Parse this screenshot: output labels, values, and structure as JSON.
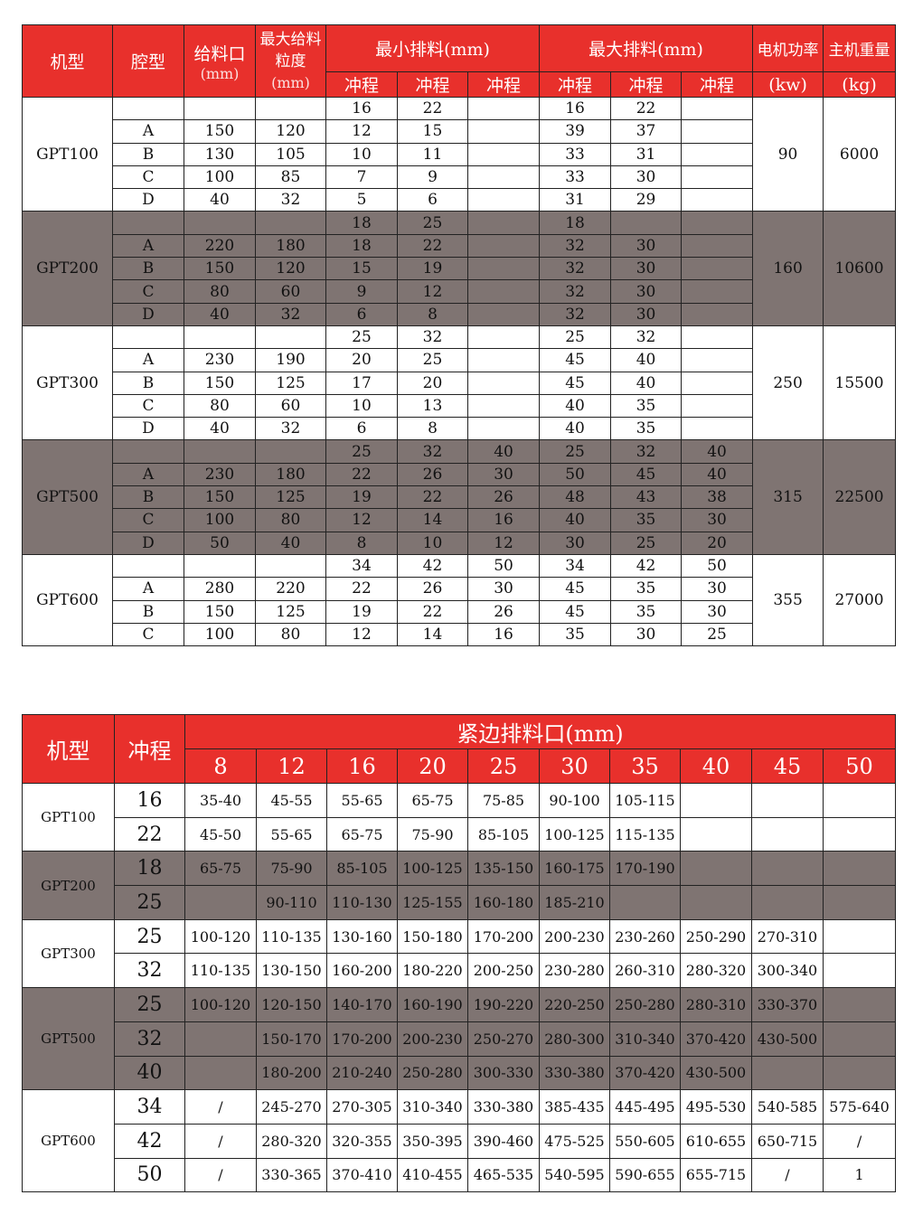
{
  "colors": {
    "header_red": "#e8302c",
    "gray_band": "#7f7472"
  },
  "table1": {
    "headers": {
      "model": "机型",
      "cavity": "腔型",
      "feed_opening": "给料口",
      "feed_opening_unit": "(mm)",
      "max_feed": "最大给料粒度",
      "max_feed_unit": "(mm)",
      "min_discharge": "最小排料(mm)",
      "max_discharge": "最大排料(mm)",
      "stroke": "冲程",
      "power": "电机功率",
      "power_unit": "(kw)",
      "weight": "主机重量",
      "weight_unit": "(kg)"
    },
    "groups": [
      {
        "model": "GPT100",
        "power": "90",
        "weight": "6000",
        "gray": false,
        "rows": [
          [
            "",
            "",
            "",
            "16",
            "22",
            "",
            "16",
            "22",
            ""
          ],
          [
            "A",
            "150",
            "120",
            "12",
            "15",
            "",
            "39",
            "37",
            ""
          ],
          [
            "B",
            "130",
            "105",
            "10",
            "11",
            "",
            "33",
            "31",
            ""
          ],
          [
            "C",
            "100",
            "85",
            "7",
            "9",
            "",
            "33",
            "30",
            ""
          ],
          [
            "D",
            "40",
            "32",
            "5",
            "6",
            "",
            "31",
            "29",
            ""
          ]
        ]
      },
      {
        "model": "GPT200",
        "power": "160",
        "weight": "10600",
        "gray": true,
        "rows": [
          [
            "",
            "",
            "",
            "18",
            "25",
            "",
            "18",
            "",
            ""
          ],
          [
            "A",
            "220",
            "180",
            "18",
            "22",
            "",
            "32",
            "30",
            ""
          ],
          [
            "B",
            "150",
            "120",
            "15",
            "19",
            "",
            "32",
            "30",
            ""
          ],
          [
            "C",
            "80",
            "60",
            "9",
            "12",
            "",
            "32",
            "30",
            ""
          ],
          [
            "D",
            "40",
            "32",
            "6",
            "8",
            "",
            "32",
            "30",
            ""
          ]
        ]
      },
      {
        "model": "GPT300",
        "power": "250",
        "weight": "15500",
        "gray": false,
        "rows": [
          [
            "",
            "",
            "",
            "25",
            "32",
            "",
            "25",
            "32",
            ""
          ],
          [
            "A",
            "230",
            "190",
            "20",
            "25",
            "",
            "45",
            "40",
            ""
          ],
          [
            "B",
            "150",
            "125",
            "17",
            "20",
            "",
            "45",
            "40",
            ""
          ],
          [
            "C",
            "80",
            "60",
            "10",
            "13",
            "",
            "40",
            "35",
            ""
          ],
          [
            "D",
            "40",
            "32",
            "6",
            "8",
            "",
            "40",
            "35",
            ""
          ]
        ]
      },
      {
        "model": "GPT500",
        "power": "315",
        "weight": "22500",
        "gray": true,
        "rows": [
          [
            "",
            "",
            "",
            "25",
            "32",
            "40",
            "25",
            "32",
            "40"
          ],
          [
            "A",
            "230",
            "180",
            "22",
            "26",
            "30",
            "50",
            "45",
            "40"
          ],
          [
            "B",
            "150",
            "125",
            "19",
            "22",
            "26",
            "48",
            "43",
            "38"
          ],
          [
            "C",
            "100",
            "80",
            "12",
            "14",
            "16",
            "40",
            "35",
            "30"
          ],
          [
            "D",
            "50",
            "40",
            "8",
            "10",
            "12",
            "30",
            "25",
            "20"
          ]
        ]
      },
      {
        "model": "GPT600",
        "power": "355",
        "weight": "27000",
        "gray": false,
        "rows": [
          [
            "",
            "",
            "",
            "34",
            "42",
            "50",
            "34",
            "42",
            "50"
          ],
          [
            "A",
            "280",
            "220",
            "22",
            "26",
            "30",
            "45",
            "35",
            "30"
          ],
          [
            "B",
            "150",
            "125",
            "19",
            "22",
            "26",
            "45",
            "35",
            "30"
          ],
          [
            "C",
            "100",
            "80",
            "12",
            "14",
            "16",
            "35",
            "30",
            "25"
          ]
        ]
      }
    ]
  },
  "table2": {
    "headers": {
      "model": "机型",
      "stroke": "冲程",
      "css": "紧边排料口(mm)",
      "sizes": [
        "8",
        "12",
        "16",
        "20",
        "25",
        "30",
        "35",
        "40",
        "45",
        "50"
      ]
    },
    "groups": [
      {
        "model": "GPT100",
        "gray": false,
        "rows": [
          [
            "16",
            "35-40",
            "45-55",
            "55-65",
            "65-75",
            "75-85",
            "90-100",
            "105-115",
            "",
            "",
            ""
          ],
          [
            "22",
            "45-50",
            "55-65",
            "65-75",
            "75-90",
            "85-105",
            "100-125",
            "115-135",
            "",
            "",
            ""
          ]
        ]
      },
      {
        "model": "GPT200",
        "gray": true,
        "rows": [
          [
            "18",
            "65-75",
            "75-90",
            "85-105",
            "100-125",
            "135-150",
            "160-175",
            "170-190",
            "",
            "",
            ""
          ],
          [
            "25",
            "",
            "90-110",
            "110-130",
            "125-155",
            "160-180",
            "185-210",
            "",
            "",
            "",
            ""
          ]
        ]
      },
      {
        "model": "GPT300",
        "gray": false,
        "rows": [
          [
            "25",
            "100-120",
            "110-135",
            "130-160",
            "150-180",
            "170-200",
            "200-230",
            "230-260",
            "250-290",
            "270-310",
            ""
          ],
          [
            "32",
            "110-135",
            "130-150",
            "160-200",
            "180-220",
            "200-250",
            "230-280",
            "260-310",
            "280-320",
            "300-340",
            ""
          ]
        ]
      },
      {
        "model": "GPT500",
        "gray": true,
        "rows": [
          [
            "25",
            "100-120",
            "120-150",
            "140-170",
            "160-190",
            "190-220",
            "220-250",
            "250-280",
            "280-310",
            "330-370",
            ""
          ],
          [
            "32",
            "",
            "150-170",
            "170-200",
            "200-230",
            "250-270",
            "280-300",
            "310-340",
            "370-420",
            "430-500",
            ""
          ],
          [
            "40",
            "",
            "180-200",
            "210-240",
            "250-280",
            "300-330",
            "330-380",
            "370-420",
            "430-500",
            "",
            ""
          ]
        ]
      },
      {
        "model": "GPT600",
        "gray": false,
        "rows": [
          [
            "34",
            "/",
            "245-270",
            "270-305",
            "310-340",
            "330-380",
            "385-435",
            "445-495",
            "495-530",
            "540-585",
            "575-640"
          ],
          [
            "42",
            "/",
            "280-320",
            "320-355",
            "350-395",
            "390-460",
            "475-525",
            "550-605",
            "610-655",
            "650-715",
            "/"
          ],
          [
            "50",
            "/",
            "330-365",
            "370-410",
            "410-455",
            "465-535",
            "540-595",
            "590-655",
            "655-715",
            "/",
            "1"
          ]
        ]
      }
    ]
  }
}
